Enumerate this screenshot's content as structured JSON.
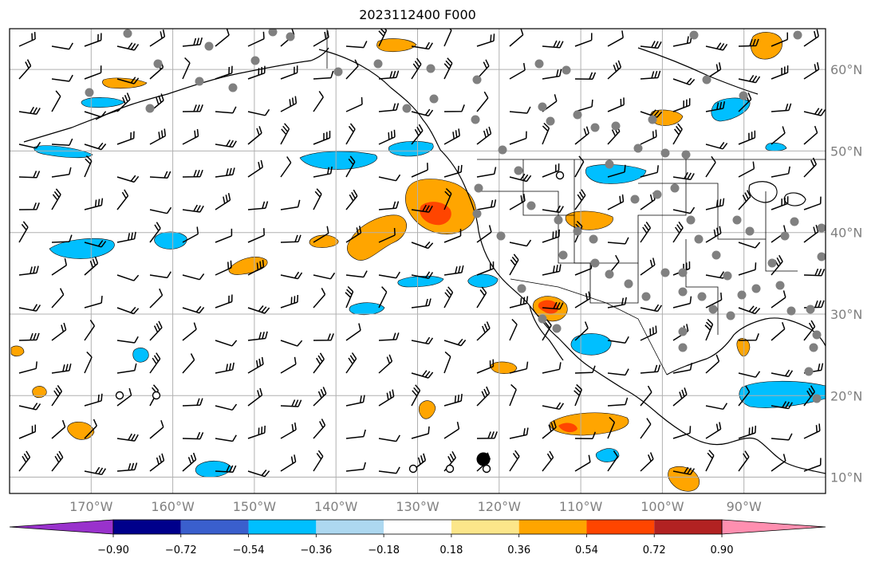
{
  "title": "2023112400 F000",
  "map": {
    "lon_range": [
      -180,
      -80
    ],
    "lat_range": [
      8,
      65
    ],
    "lon_ticks": [
      {
        "value": -170,
        "label": "170°W"
      },
      {
        "value": -160,
        "label": "160°W"
      },
      {
        "value": -150,
        "label": "150°W"
      },
      {
        "value": -140,
        "label": "140°W"
      },
      {
        "value": -130,
        "label": "130°W"
      },
      {
        "value": -120,
        "label": "120°W"
      },
      {
        "value": -110,
        "label": "110°W"
      },
      {
        "value": -100,
        "label": "100°W"
      },
      {
        "value": -90,
        "label": "90°W"
      }
    ],
    "lat_ticks": [
      {
        "value": 60,
        "label": "60°N"
      },
      {
        "value": 50,
        "label": "50°N"
      },
      {
        "value": 40,
        "label": "40°N"
      },
      {
        "value": 30,
        "label": "30°N"
      },
      {
        "value": 20,
        "label": "20°N"
      },
      {
        "value": 10,
        "label": "10°N"
      }
    ],
    "grid": true,
    "features": [
      "coastlines",
      "us-state-borders",
      "wind-barbs",
      "station-markers",
      "shaded-field"
    ]
  },
  "colorbar": {
    "levels": [
      "−0.90",
      "−0.72",
      "−0.54",
      "−0.36",
      "−0.18",
      "0.18",
      "0.36",
      "0.54",
      "0.72",
      "0.90"
    ],
    "colors": [
      "#9932cc",
      "#00008b",
      "#3a5fcd",
      "#00bfff",
      "#add8f0",
      "#ffffff",
      "#fce68a",
      "#ffa500",
      "#ff4500",
      "#b22222",
      "#ff8fb0"
    ],
    "extend": "both"
  }
}
